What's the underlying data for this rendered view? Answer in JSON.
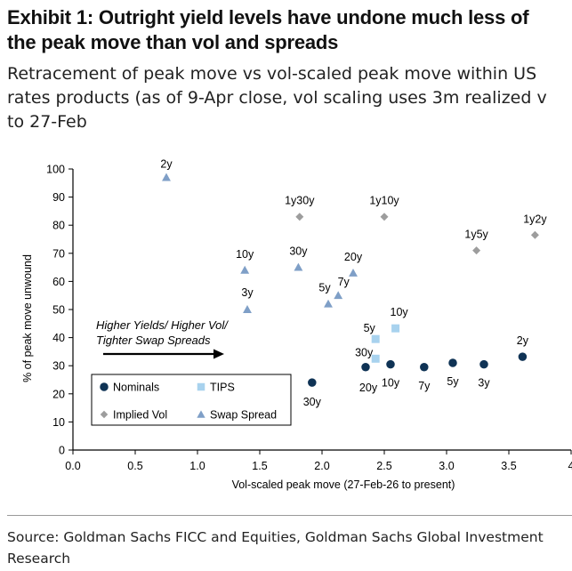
{
  "header": {
    "title_line1": "Exhibit 1: Outright yield levels have undone much less of",
    "title_line2": "the peak move than vol and spreads",
    "subtitle_line1": "Retracement of peak move vs vol-scaled peak move within US",
    "subtitle_line2": "rates products (as of 9-Apr close, vol scaling uses 3m realized v",
    "subtitle_line3": "to 27-Feb"
  },
  "footer": {
    "source_line1": "Source: Goldman Sachs FICC and Equities, Goldman Sachs Global Investment",
    "source_line2": "Research"
  },
  "colors": {
    "nominals": "#0f3355",
    "tips": "#a8d2ee",
    "implied_vol": "#9d9d9d",
    "swap_spread": "#7f9fc7",
    "axis": "#000000"
  },
  "chart_data": {
    "type": "scatter",
    "xlabel": "Vol-scaled peak move (27-Feb-26 to present)",
    "ylabel": "% of peak move unwound",
    "xlim": [
      0,
      4
    ],
    "ylim": [
      0,
      100
    ],
    "xticks": [
      "0.0",
      "0.5",
      "1.0",
      "1.5",
      "2.0",
      "2.5",
      "3.0",
      "3.5",
      "4"
    ],
    "yticks": [
      "0",
      "10",
      "20",
      "30",
      "40",
      "50",
      "60",
      "70",
      "80",
      "90",
      "100"
    ],
    "annotation_line1": "Higher Yields/ Higher Vol/",
    "annotation_line2": "Tighter Swap Spreads",
    "legend_position": "bottom-left",
    "series": [
      {
        "name": "Nominals",
        "marker": "circle",
        "points": [
          {
            "label": "30y",
            "x": 1.92,
            "y": 24
          },
          {
            "label": "20y",
            "x": 2.35,
            "y": 29.5
          },
          {
            "label": "10y",
            "x": 2.55,
            "y": 30.5
          },
          {
            "label": "7y",
            "x": 2.82,
            "y": 29.5
          },
          {
            "label": "5y",
            "x": 3.05,
            "y": 31
          },
          {
            "label": "3y",
            "x": 3.3,
            "y": 30.5
          },
          {
            "label": "2y",
            "x": 3.61,
            "y": 33.2
          }
        ]
      },
      {
        "name": "TIPS",
        "marker": "square",
        "points": [
          {
            "label": "30y",
            "x": 2.43,
            "y": 32.5
          },
          {
            "label": "5y",
            "x": 2.43,
            "y": 39.5
          },
          {
            "label": "10y",
            "x": 2.59,
            "y": 43.3
          }
        ]
      },
      {
        "name": "Implied Vol",
        "marker": "diamond",
        "points": [
          {
            "label": "1y30y",
            "x": 1.82,
            "y": 83
          },
          {
            "label": "1y10y",
            "x": 2.5,
            "y": 83
          },
          {
            "label": "1y5y",
            "x": 3.24,
            "y": 71
          },
          {
            "label": "1y2y",
            "x": 3.71,
            "y": 76.5
          }
        ]
      },
      {
        "name": "Swap Spread",
        "marker": "triangle",
        "points": [
          {
            "label": "2y",
            "x": 0.75,
            "y": 97
          },
          {
            "label": "10y",
            "x": 1.38,
            "y": 64
          },
          {
            "label": "3y",
            "x": 1.4,
            "y": 50
          },
          {
            "label": "30y",
            "x": 1.81,
            "y": 65
          },
          {
            "label": "5y",
            "x": 2.05,
            "y": 52
          },
          {
            "label": "7y",
            "x": 2.13,
            "y": 55
          },
          {
            "label": "20y",
            "x": 2.25,
            "y": 63
          }
        ]
      }
    ]
  }
}
